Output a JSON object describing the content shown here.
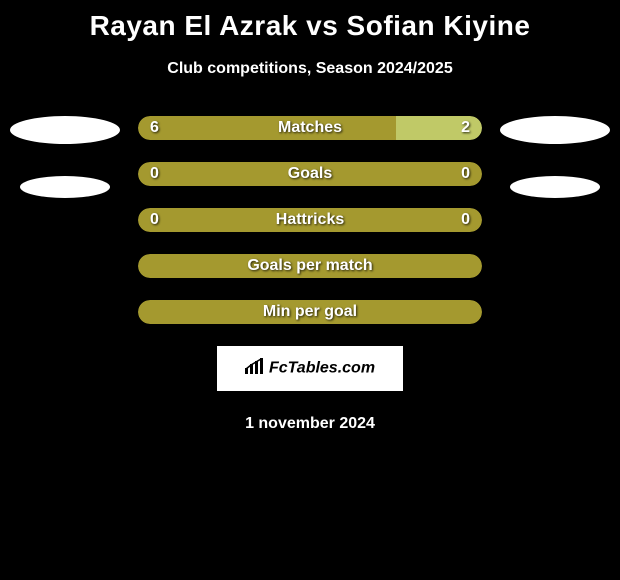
{
  "header": {
    "title": "Rayan El Azrak vs Sofian Kiyine",
    "subtitle": "Club competitions, Season 2024/2025"
  },
  "colors": {
    "background": "#000000",
    "text": "#ffffff",
    "bar_left": "#a4992f",
    "bar_right_accent": "#c0c967",
    "ellipse": "#ffffff"
  },
  "typography": {
    "title_fontsize": 28,
    "subtitle_fontsize": 16,
    "bar_label_fontsize": 16
  },
  "stats": [
    {
      "label": "Matches",
      "left_value": "6",
      "right_value": "2",
      "left_pct": 75,
      "right_pct": 25,
      "right_accent": true
    },
    {
      "label": "Goals",
      "left_value": "0",
      "right_value": "0",
      "left_pct": 100,
      "right_pct": 0,
      "right_accent": false
    },
    {
      "label": "Hattricks",
      "left_value": "0",
      "right_value": "0",
      "left_pct": 100,
      "right_pct": 0,
      "right_accent": false
    },
    {
      "label": "Goals per match",
      "left_value": "",
      "right_value": "",
      "left_pct": 100,
      "right_pct": 0,
      "right_accent": false
    },
    {
      "label": "Min per goal",
      "left_value": "",
      "right_value": "",
      "left_pct": 100,
      "right_pct": 0,
      "right_accent": false
    }
  ],
  "side_ellipses": {
    "left": [
      {
        "size": "lg"
      },
      {
        "size": "sm"
      }
    ],
    "right": [
      {
        "size": "lg"
      },
      {
        "size": "sm"
      }
    ]
  },
  "footer": {
    "logo_text": "FcTables.com",
    "date": "1 november 2024"
  }
}
